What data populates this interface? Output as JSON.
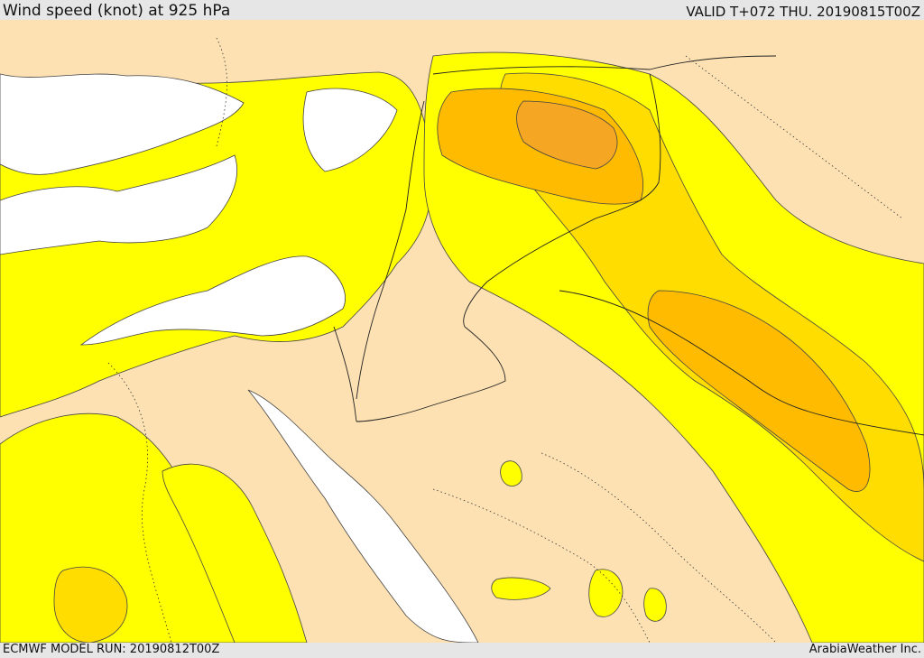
{
  "header": {
    "title": "Wind speed (knot) at 925 hPa",
    "valid": "VALID T+072 THU. 20190815T00Z"
  },
  "footer": {
    "model_run": "ECMWF MODEL RUN: 20190812T00Z",
    "credit": "ArabiaWeather Inc."
  },
  "colors": {
    "background_bar": "#e6e6e6",
    "land": "#fde1b2",
    "sea_calm": "#ffffff",
    "wind_low": "#ffff00",
    "wind_mid": "#ffdd00",
    "wind_high": "#ffbb00",
    "wind_higher": "#f5a623",
    "contour": "#333333"
  }
}
